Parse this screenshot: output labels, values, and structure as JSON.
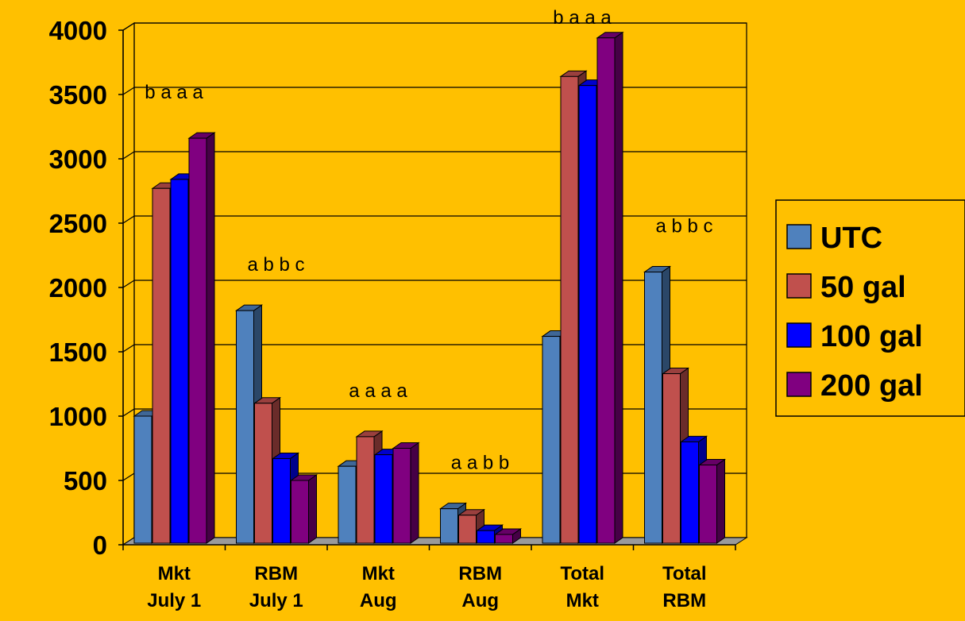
{
  "chart_data": {
    "type": "bar",
    "title": "",
    "xlabel": "",
    "ylabel": "",
    "ylim": [
      0,
      4000
    ],
    "yticks": [
      0,
      500,
      1000,
      1500,
      2000,
      2500,
      3000,
      3500,
      4000
    ],
    "grid": true,
    "legend_position": "right",
    "style": "3d-clustered-column",
    "categories": [
      [
        "Mkt",
        "July 1"
      ],
      [
        "RBM",
        "July 1"
      ],
      [
        "Mkt",
        "Aug"
      ],
      [
        "RBM",
        "Aug"
      ],
      [
        "Total",
        "Mkt"
      ],
      [
        "Total",
        "RBM"
      ]
    ],
    "series": [
      {
        "name": "UTC",
        "color": "#4f81bd",
        "values": [
          1000,
          1820,
          610,
          280,
          1620,
          2120
        ]
      },
      {
        "name": "50 gal",
        "color": "#c0504d",
        "values": [
          2770,
          1100,
          840,
          230,
          3640,
          1330
        ]
      },
      {
        "name": "100 gal",
        "color": "#0000ff",
        "values": [
          2840,
          670,
          700,
          110,
          3570,
          800
        ]
      },
      {
        "name": "200 gal",
        "color": "#800080",
        "values": [
          3160,
          500,
          750,
          80,
          3940,
          620
        ]
      }
    ],
    "annotations": [
      "b a a a",
      "a b b c",
      "a a a a",
      "a a b b",
      "b a a a",
      "a b b c"
    ]
  }
}
